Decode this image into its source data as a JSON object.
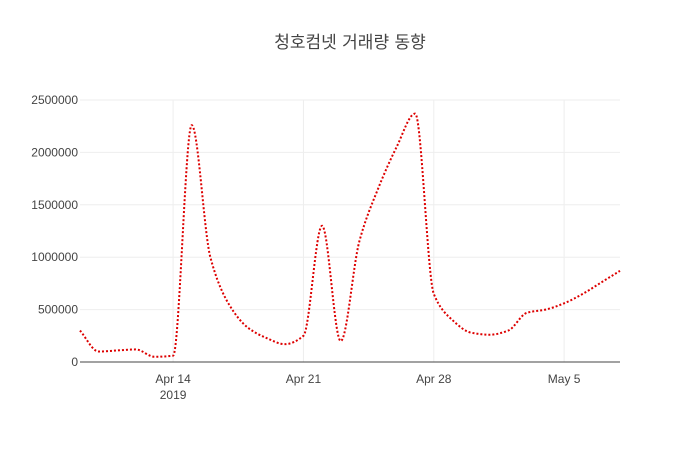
{
  "chart_data": {
    "type": "line",
    "title": "청호컴넷 거래량 동향",
    "xlabel": "",
    "ylabel": "",
    "x_ticks": [
      {
        "date": "2019-04-14",
        "label": "Apr 14",
        "sublabel": "2019"
      },
      {
        "date": "2019-04-21",
        "label": "Apr 21",
        "sublabel": ""
      },
      {
        "date": "2019-04-28",
        "label": "Apr 28",
        "sublabel": ""
      },
      {
        "date": "2019-05-05",
        "label": "May 5",
        "sublabel": ""
      }
    ],
    "y_ticks": [
      0,
      500000,
      1000000,
      1500000,
      2000000,
      2500000
    ],
    "xlim": [
      "2019-04-09",
      "2019-05-08"
    ],
    "ylim": [
      0,
      2500000
    ],
    "grid": true,
    "series": [
      {
        "color": "#dd0000",
        "line_style": "dotted",
        "x": [
          "2019-04-09",
          "2019-04-10",
          "2019-04-11",
          "2019-04-12",
          "2019-04-13",
          "2019-04-14",
          "2019-04-15",
          "2019-04-16",
          "2019-04-17",
          "2019-04-18",
          "2019-04-19",
          "2019-04-20",
          "2019-04-21",
          "2019-04-22",
          "2019-04-23",
          "2019-04-24",
          "2019-04-25",
          "2019-04-26",
          "2019-04-27",
          "2019-04-28",
          "2019-04-29",
          "2019-04-30",
          "2019-05-01",
          "2019-05-02",
          "2019-05-03",
          "2019-05-04",
          "2019-05-05",
          "2019-05-06",
          "2019-05-07",
          "2019-05-08"
        ],
        "values": [
          300000,
          100000,
          110000,
          120000,
          50000,
          60000,
          2260000,
          1000000,
          550000,
          330000,
          230000,
          170000,
          250000,
          1300000,
          200000,
          1150000,
          1650000,
          2050000,
          2370000,
          650000,
          400000,
          280000,
          260000,
          300000,
          470000,
          500000,
          560000,
          650000,
          760000,
          870000
        ]
      }
    ]
  }
}
